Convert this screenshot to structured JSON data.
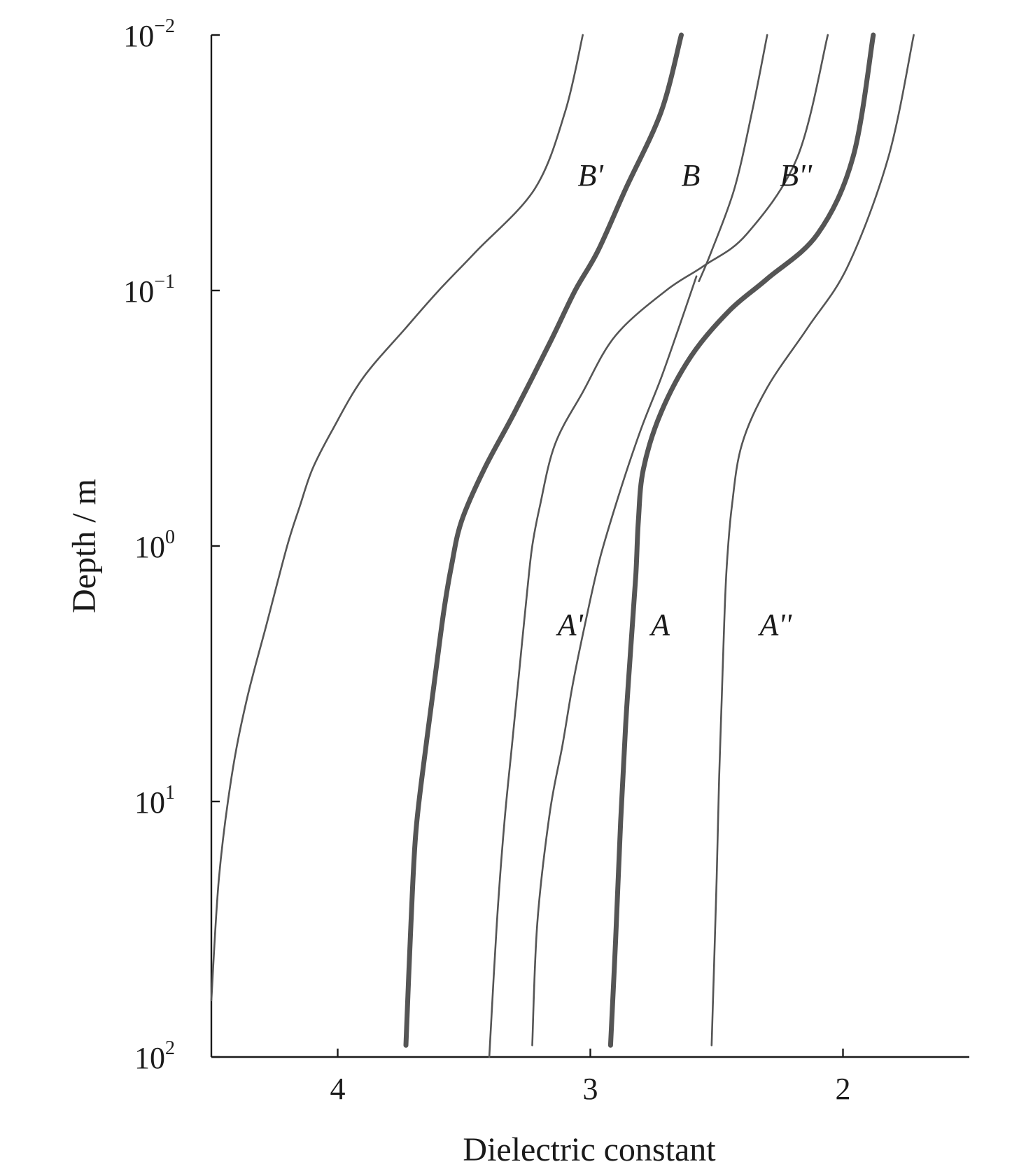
{
  "chart_data": {
    "type": "line",
    "title": "",
    "xlabel": "Dielectric constant",
    "ylabel": "Depth / m",
    "x_axis": {
      "reversed": true,
      "range": [
        4.5,
        1.5
      ],
      "ticks": [
        {
          "value": 4,
          "label": "4"
        },
        {
          "value": 3,
          "label": "3"
        },
        {
          "value": 2,
          "label": "2"
        }
      ]
    },
    "y_axis": {
      "scale": "log",
      "inverted": true,
      "range": [
        0.01,
        100
      ],
      "ticks": [
        {
          "value": 0.01,
          "base": "10",
          "exp": "−2"
        },
        {
          "value": 0.1,
          "base": "10",
          "exp": "−1"
        },
        {
          "value": 1,
          "base": "10",
          "exp": "0"
        },
        {
          "value": 10,
          "base": "10",
          "exp": "1"
        },
        {
          "value": 100,
          "base": "10",
          "exp": "2"
        }
      ]
    },
    "grid": false,
    "legend": "none",
    "series": [
      {
        "name": "B'",
        "color": "#555555",
        "weight": "thin",
        "points": [
          [
            3.03,
            0.01
          ],
          [
            3.1,
            0.02
          ],
          [
            3.22,
            0.04
          ],
          [
            3.45,
            0.07
          ],
          [
            3.6,
            0.1
          ],
          [
            3.73,
            0.14
          ],
          [
            3.9,
            0.22
          ],
          [
            4.02,
            0.35
          ],
          [
            4.1,
            0.5
          ],
          [
            4.15,
            0.7
          ],
          [
            4.2,
            1.0
          ],
          [
            4.28,
            2.0
          ],
          [
            4.36,
            4.0
          ],
          [
            4.42,
            8.0
          ],
          [
            4.47,
            20.0
          ],
          [
            4.5,
            60.0
          ]
        ]
      },
      {
        "name": "B",
        "color": "#3a3a3a",
        "weight": "thick",
        "points": [
          [
            2.64,
            0.01
          ],
          [
            2.72,
            0.02
          ],
          [
            2.86,
            0.04
          ],
          [
            2.97,
            0.07
          ],
          [
            3.06,
            0.1
          ],
          [
            3.16,
            0.16
          ],
          [
            3.3,
            0.3
          ],
          [
            3.42,
            0.5
          ],
          [
            3.51,
            0.8
          ],
          [
            3.55,
            1.2
          ],
          [
            3.58,
            1.8
          ],
          [
            3.61,
            3.0
          ],
          [
            3.65,
            6.0
          ],
          [
            3.69,
            13.0
          ],
          [
            3.71,
            30.0
          ],
          [
            3.73,
            90.0
          ]
        ]
      },
      {
        "name": "B''",
        "color": "#555555",
        "weight": "thin",
        "points": [
          [
            2.3,
            0.01
          ],
          [
            2.36,
            0.02
          ],
          [
            2.43,
            0.04
          ],
          [
            2.52,
            0.07
          ],
          [
            2.57,
            0.092
          ]
        ]
      },
      {
        "name": "A'",
        "color": "#555555",
        "weight": "thin",
        "points": [
          [
            2.06,
            0.01
          ],
          [
            2.18,
            0.03
          ],
          [
            2.38,
            0.06
          ],
          [
            2.55,
            0.08
          ],
          [
            2.7,
            0.1
          ],
          [
            2.9,
            0.15
          ],
          [
            3.03,
            0.25
          ],
          [
            3.14,
            0.4
          ],
          [
            3.2,
            0.7
          ],
          [
            3.23,
            1.0
          ],
          [
            3.25,
            1.5
          ],
          [
            3.28,
            3.0
          ],
          [
            3.31,
            6.0
          ],
          [
            3.34,
            12.0
          ],
          [
            3.37,
            30.0
          ],
          [
            3.4,
            100.0
          ]
        ]
      },
      {
        "name": "",
        "color": "#555555",
        "weight": "thin",
        "points": [
          [
            2.58,
            0.088
          ],
          [
            2.65,
            0.14
          ],
          [
            2.72,
            0.22
          ],
          [
            2.8,
            0.35
          ],
          [
            2.88,
            0.6
          ],
          [
            2.96,
            1.1
          ],
          [
            3.02,
            2.0
          ],
          [
            3.07,
            3.5
          ],
          [
            3.11,
            6.0
          ],
          [
            3.16,
            11.0
          ],
          [
            3.21,
            30.0
          ],
          [
            3.23,
            90.0
          ]
        ]
      },
      {
        "name": "A",
        "color": "#3a3a3a",
        "weight": "thick",
        "points": [
          [
            1.88,
            0.01
          ],
          [
            1.96,
            0.03
          ],
          [
            2.1,
            0.06
          ],
          [
            2.3,
            0.09
          ],
          [
            2.45,
            0.12
          ],
          [
            2.6,
            0.18
          ],
          [
            2.72,
            0.3
          ],
          [
            2.79,
            0.5
          ],
          [
            2.81,
            0.8
          ],
          [
            2.82,
            1.3
          ],
          [
            2.84,
            2.5
          ],
          [
            2.86,
            5.0
          ],
          [
            2.88,
            12.0
          ],
          [
            2.9,
            35.0
          ],
          [
            2.92,
            90.0
          ]
        ]
      },
      {
        "name": "A''",
        "color": "#555555",
        "weight": "thin",
        "points": [
          [
            1.72,
            0.01
          ],
          [
            1.82,
            0.03
          ],
          [
            1.98,
            0.08
          ],
          [
            2.14,
            0.14
          ],
          [
            2.3,
            0.24
          ],
          [
            2.4,
            0.4
          ],
          [
            2.44,
            0.7
          ],
          [
            2.46,
            1.2
          ],
          [
            2.47,
            2.0
          ],
          [
            2.48,
            4.0
          ],
          [
            2.49,
            8.0
          ],
          [
            2.5,
            20.0
          ],
          [
            2.52,
            90.0
          ]
        ]
      }
    ],
    "annotations": [
      {
        "text": "B'",
        "x": 3.05,
        "y": 0.0355
      },
      {
        "text": "B",
        "x": 2.64,
        "y": 0.0355
      },
      {
        "text": "B''",
        "x": 2.25,
        "y": 0.0355
      },
      {
        "text": "A'",
        "x": 3.13,
        "y": 2.04
      },
      {
        "text": "A",
        "x": 2.76,
        "y": 2.04
      },
      {
        "text": "A''",
        "x": 2.33,
        "y": 2.04
      }
    ]
  }
}
